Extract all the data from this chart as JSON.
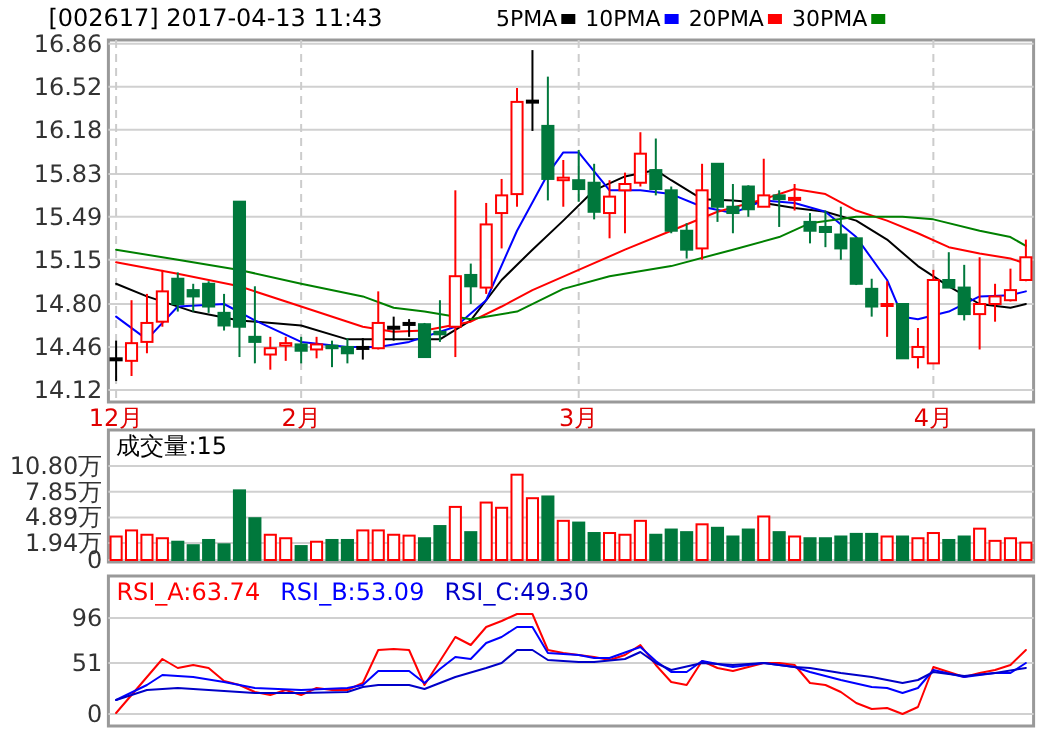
{
  "chart_data": [
    {
      "type": "candlestick",
      "title": "[002617] 2017-04-13 11:43",
      "categories": [
        "12月",
        null,
        null,
        null,
        null,
        null,
        null,
        null,
        null,
        null,
        null,
        null,
        "2月",
        null,
        null,
        null,
        null,
        null,
        null,
        null,
        null,
        null,
        null,
        null,
        null,
        null,
        null,
        null,
        null,
        null,
        "3月",
        null,
        null,
        null,
        null,
        null,
        null,
        null,
        null,
        null,
        null,
        null,
        null,
        null,
        null,
        null,
        null,
        null,
        null,
        null,
        null,
        null,
        null,
        "4月",
        null,
        null,
        null,
        null,
        null,
        null
      ],
      "ohlc": [
        [
          14.37,
          14.51,
          14.19,
          14.37
        ],
        [
          14.35,
          14.83,
          14.23,
          14.49
        ],
        [
          14.5,
          14.88,
          14.41,
          14.65
        ],
        [
          14.66,
          15.07,
          14.62,
          14.9
        ],
        [
          15.0,
          15.05,
          14.74,
          14.8
        ],
        [
          14.91,
          14.96,
          14.74,
          14.86
        ],
        [
          14.96,
          14.98,
          14.73,
          14.78
        ],
        [
          14.73,
          14.88,
          14.59,
          14.63
        ],
        [
          15.61,
          15.61,
          14.38,
          14.62
        ],
        [
          14.54,
          14.94,
          14.33,
          14.5
        ],
        [
          14.4,
          14.54,
          14.28,
          14.45
        ],
        [
          14.47,
          14.54,
          14.35,
          14.49
        ],
        [
          14.48,
          14.54,
          14.33,
          14.43
        ],
        [
          14.44,
          14.54,
          14.37,
          14.48
        ],
        [
          14.47,
          14.51,
          14.3,
          14.45
        ],
        [
          14.46,
          14.53,
          14.33,
          14.41
        ],
        [
          14.46,
          14.53,
          14.36,
          14.46
        ],
        [
          14.45,
          14.9,
          14.44,
          14.65
        ],
        [
          14.62,
          14.7,
          14.51,
          14.62
        ],
        [
          14.65,
          14.68,
          14.54,
          14.65
        ],
        [
          14.64,
          14.65,
          14.38,
          14.38
        ],
        [
          14.58,
          14.83,
          14.5,
          14.56
        ],
        [
          14.62,
          15.7,
          14.38,
          15.02
        ],
        [
          15.03,
          15.12,
          14.8,
          14.94
        ],
        [
          14.93,
          15.6,
          14.88,
          15.43
        ],
        [
          15.52,
          15.79,
          15.24,
          15.66
        ],
        [
          15.67,
          16.51,
          15.57,
          16.4
        ],
        [
          16.41,
          16.81,
          16.17,
          16.41
        ],
        [
          16.21,
          16.6,
          15.62,
          15.79
        ],
        [
          15.78,
          15.94,
          15.57,
          15.8
        ],
        [
          15.78,
          16.02,
          15.61,
          15.71
        ],
        [
          15.76,
          15.91,
          15.47,
          15.53
        ],
        [
          15.52,
          15.78,
          15.32,
          15.65
        ],
        [
          15.7,
          15.84,
          15.36,
          15.75
        ],
        [
          15.76,
          16.16,
          15.73,
          15.99
        ],
        [
          15.86,
          16.11,
          15.66,
          15.71
        ],
        [
          15.7,
          15.73,
          15.36,
          15.38
        ],
        [
          15.38,
          15.44,
          15.16,
          15.23
        ],
        [
          15.24,
          15.91,
          15.15,
          15.7
        ],
        [
          15.91,
          15.91,
          15.45,
          15.57
        ],
        [
          15.57,
          15.75,
          15.36,
          15.52
        ],
        [
          15.73,
          15.74,
          15.49,
          15.55
        ],
        [
          15.57,
          15.95,
          15.57,
          15.66
        ],
        [
          15.66,
          15.7,
          15.41,
          15.63
        ],
        [
          15.63,
          15.75,
          15.54,
          15.64
        ],
        [
          15.45,
          15.52,
          15.28,
          15.38
        ],
        [
          15.41,
          15.54,
          15.25,
          15.37
        ],
        [
          15.35,
          15.57,
          15.15,
          15.24
        ],
        [
          15.32,
          15.33,
          14.95,
          14.96
        ],
        [
          14.92,
          15.0,
          14.7,
          14.78
        ],
        [
          14.79,
          14.98,
          14.54,
          14.8
        ],
        [
          14.8,
          14.8,
          14.37,
          14.37
        ],
        [
          14.38,
          14.61,
          14.29,
          14.46
        ],
        [
          14.33,
          15.07,
          14.33,
          14.99
        ],
        [
          14.99,
          15.21,
          14.93,
          14.93
        ],
        [
          14.93,
          15.11,
          14.67,
          14.72
        ],
        [
          14.72,
          15.17,
          14.44,
          14.8
        ],
        [
          14.8,
          14.96,
          14.66,
          14.86
        ],
        [
          14.83,
          15.08,
          14.82,
          14.91
        ],
        [
          14.99,
          15.31,
          14.98,
          15.17
        ]
      ],
      "colors": [
        "#000000",
        "#ff0000",
        "#ff0000",
        "#ff0000",
        "#00783c",
        "#00783c",
        "#00783c",
        "#00783c",
        "#00783c",
        "#00783c",
        "#ff0000",
        "#ff0000",
        "#00783c",
        "#ff0000",
        "#00783c",
        "#00783c",
        "#000000",
        "#ff0000",
        "#000000",
        "#000000",
        "#00783c",
        "#00783c",
        "#ff0000",
        "#00783c",
        "#ff0000",
        "#ff0000",
        "#ff0000",
        "#000000",
        "#00783c",
        "#ff0000",
        "#00783c",
        "#00783c",
        "#ff0000",
        "#ff0000",
        "#ff0000",
        "#00783c",
        "#00783c",
        "#00783c",
        "#ff0000",
        "#00783c",
        "#00783c",
        "#00783c",
        "#ff0000",
        "#00783c",
        "#ff0000",
        "#00783c",
        "#00783c",
        "#00783c",
        "#00783c",
        "#00783c",
        "#ff0000",
        "#00783c",
        "#ff0000",
        "#ff0000",
        "#00783c",
        "#00783c",
        "#ff0000",
        "#ff0000",
        "#ff0000",
        "#ff0000"
      ],
      "series": [
        {
          "name": "5PMA",
          "type": "line",
          "color": "#000000",
          "values": [
            14.96,
            null,
            14.86,
            null,
            null,
            14.74,
            null,
            null,
            14.67,
            null,
            null,
            null,
            14.63,
            null,
            null,
            14.52,
            null,
            null,
            14.52,
            null,
            null,
            14.52,
            null,
            14.67,
            null,
            14.99,
            null,
            15.23,
            null,
            15.46,
            null,
            15.7,
            null,
            15.81,
            null,
            15.86,
            15.78,
            null,
            15.63,
            null,
            15.62,
            null,
            15.6,
            null,
            15.56,
            null,
            15.53,
            null,
            15.46,
            null,
            15.31,
            null,
            15.1,
            null,
            14.94,
            null,
            14.8,
            null,
            14.77,
            14.8
          ]
        },
        {
          "name": "10PMA",
          "type": "line",
          "color": "#0000ff",
          "values": [
            14.7,
            null,
            14.52,
            null,
            14.78,
            null,
            null,
            14.8,
            null,
            14.67,
            null,
            null,
            14.5,
            null,
            null,
            14.46,
            null,
            14.46,
            null,
            14.5,
            null,
            null,
            14.62,
            null,
            14.83,
            null,
            15.38,
            null,
            15.83,
            16.0,
            16.0,
            null,
            15.7,
            null,
            15.7,
            null,
            15.67,
            null,
            15.57,
            null,
            15.52,
            null,
            15.62,
            null,
            15.6,
            null,
            15.53,
            null,
            15.33,
            null,
            14.99,
            14.7,
            14.68,
            null,
            14.74,
            null,
            14.86,
            null,
            14.87,
            14.9
          ]
        },
        {
          "name": "20PMA",
          "type": "line",
          "color": "#ff0000",
          "values": [
            15.13,
            null,
            null,
            null,
            15.04,
            null,
            null,
            null,
            14.94,
            null,
            null,
            null,
            14.78,
            null,
            null,
            null,
            14.62,
            null,
            14.58,
            null,
            14.59,
            null,
            null,
            14.66,
            null,
            14.78,
            null,
            14.91,
            null,
            null,
            15.07,
            null,
            null,
            15.23,
            null,
            null,
            15.38,
            null,
            null,
            15.53,
            null,
            null,
            15.63,
            null,
            15.71,
            null,
            15.67,
            null,
            15.54,
            null,
            15.46,
            null,
            15.36,
            null,
            15.25,
            null,
            15.2,
            null,
            15.16,
            15.12
          ]
        },
        {
          "name": "30PMA",
          "type": "line",
          "color": "#008000",
          "values": [
            15.23,
            null,
            null,
            null,
            15.15,
            null,
            null,
            null,
            15.07,
            null,
            null,
            null,
            14.96,
            null,
            null,
            null,
            14.86,
            null,
            14.77,
            null,
            14.74,
            null,
            null,
            14.68,
            null,
            null,
            14.74,
            null,
            null,
            14.92,
            null,
            null,
            15.02,
            null,
            null,
            null,
            15.1,
            null,
            null,
            null,
            15.23,
            null,
            null,
            15.33,
            null,
            15.44,
            null,
            null,
            15.49,
            null,
            null,
            15.49,
            null,
            15.47,
            null,
            null,
            15.38,
            null,
            15.33,
            15.26
          ]
        }
      ],
      "ylim": [
        14.04,
        16.89
      ],
      "yticks": [
        16.86,
        16.52,
        16.18,
        15.83,
        15.49,
        15.15,
        {
          "value": 14.8,
          "label": "14.80"
        },
        14.46,
        14.12
      ],
      "grid": true,
      "legend": "top"
    },
    {
      "type": "bar",
      "title": "成交量:15",
      "categories": [
        null,
        null,
        null,
        null,
        null,
        null,
        null,
        null,
        null,
        null,
        null,
        null,
        null,
        null,
        null,
        null,
        null,
        null,
        null,
        null,
        null,
        null,
        null,
        null,
        null,
        null,
        null,
        null,
        null,
        null,
        null,
        null,
        null,
        null,
        null,
        null,
        null,
        null,
        null,
        null,
        null,
        null,
        null,
        null,
        null,
        null,
        null,
        null,
        null,
        null,
        null,
        null,
        null,
        null,
        null,
        null,
        null,
        null,
        null,
        null
      ],
      "values": [
        2.7,
        3.4,
        2.9,
        2.5,
        2.1,
        1.7,
        2.3,
        1.8,
        8.0,
        4.8,
        2.9,
        2.5,
        1.6,
        2.1,
        2.3,
        2.3,
        3.4,
        3.4,
        2.9,
        2.8,
        2.5,
        3.9,
        6.1,
        3.2,
        6.6,
        6.0,
        9.8,
        7.1,
        7.3,
        4.5,
        4.3,
        3.1,
        3.1,
        2.9,
        4.5,
        2.9,
        3.5,
        3.2,
        4.1,
        3.7,
        2.7,
        3.5,
        5.0,
        3.2,
        2.7,
        2.5,
        2.5,
        2.7,
        3.0,
        3.0,
        2.7,
        2.7,
        2.5,
        3.1,
        2.3,
        2.7,
        3.6,
        2.2,
        2.5,
        2.0
      ],
      "colors": [
        "#ff0000",
        "#ff0000",
        "#ff0000",
        "#ff0000",
        "#00783c",
        "#00783c",
        "#00783c",
        "#00783c",
        "#00783c",
        "#00783c",
        "#ff0000",
        "#ff0000",
        "#00783c",
        "#ff0000",
        "#00783c",
        "#00783c",
        "#ff0000",
        "#ff0000",
        "#ff0000",
        "#ff0000",
        "#00783c",
        "#00783c",
        "#ff0000",
        "#00783c",
        "#ff0000",
        "#ff0000",
        "#ff0000",
        "#ff0000",
        "#00783c",
        "#ff0000",
        "#00783c",
        "#00783c",
        "#ff0000",
        "#ff0000",
        "#ff0000",
        "#00783c",
        "#00783c",
        "#00783c",
        "#ff0000",
        "#00783c",
        "#00783c",
        "#00783c",
        "#ff0000",
        "#00783c",
        "#ff0000",
        "#00783c",
        "#00783c",
        "#00783c",
        "#00783c",
        "#00783c",
        "#ff0000",
        "#00783c",
        "#ff0000",
        "#ff0000",
        "#00783c",
        "#00783c",
        "#ff0000",
        "#ff0000",
        "#ff0000",
        "#ff0000"
      ],
      "ylim": [
        0,
        11.26
      ],
      "yticks": [
        0,
        {
          "value": 1.94,
          "label": "1.94万"
        },
        {
          "value": 4.89,
          "label": "4.89万"
        },
        {
          "value": 7.85,
          "label": "7.85万"
        },
        {
          "value": 10.8,
          "label": "10.80万"
        }
      ],
      "grid": "y",
      "tick_labels": "y"
    },
    {
      "type": "line",
      "categories": [
        null,
        null,
        null,
        null,
        null,
        null,
        null,
        null,
        null,
        null,
        null,
        null,
        null,
        null,
        null,
        null,
        null,
        null,
        null,
        null,
        null,
        null,
        null,
        null,
        null,
        null,
        null,
        null,
        null,
        null,
        null,
        null,
        null,
        null,
        null,
        null,
        null,
        null,
        null,
        null,
        null,
        null,
        null,
        null,
        null,
        null,
        null,
        null,
        null,
        null,
        null,
        null,
        null,
        null,
        null,
        null,
        null,
        null,
        null,
        null
      ],
      "series": [
        {
          "name": "RSI_A:63.74",
          "color": "#ff0000",
          "values": [
            1,
            19,
            37,
            55,
            46,
            49,
            46,
            33,
            29,
            22,
            19,
            24,
            19,
            26,
            24,
            24,
            31,
            64,
            65,
            64,
            29,
            53,
            77,
            69,
            87,
            93,
            100,
            100,
            64,
            61,
            59,
            57,
            54,
            59,
            69,
            49,
            32,
            29,
            53,
            46,
            43,
            47,
            51,
            51,
            49,
            31,
            29,
            22,
            11,
            5,
            6,
            0,
            7,
            47,
            42,
            37,
            41,
            44,
            49,
            64
          ]
        },
        {
          "name": "RSI_B:53.09",
          "color": "#0000ff",
          "values": [
            14,
            null,
            29,
            39,
            null,
            37,
            null,
            32,
            null,
            26,
            null,
            null,
            24,
            null,
            null,
            26,
            29,
            43,
            null,
            43,
            31,
            45,
            57,
            55,
            71,
            77,
            87,
            87,
            61,
            null,
            59,
            56,
            56,
            null,
            67,
            53,
            42,
            42,
            53,
            null,
            47,
            null,
            51,
            null,
            47,
            42,
            null,
            34,
            null,
            27,
            26,
            21,
            26,
            44,
            null,
            37,
            null,
            41,
            41,
            51
          ]
        },
        {
          "name": "RSI_C:49.30",
          "color": "#0000c8",
          "values": [
            14,
            null,
            24,
            null,
            26,
            null,
            24,
            null,
            null,
            21,
            null,
            null,
            21,
            null,
            null,
            22,
            27,
            29,
            null,
            29,
            25,
            31,
            37,
            null,
            46,
            51,
            64,
            64,
            54,
            null,
            52,
            52,
            null,
            55,
            62,
            51,
            44,
            null,
            51,
            null,
            49,
            null,
            51,
            null,
            47,
            46,
            null,
            41,
            null,
            37,
            null,
            31,
            34,
            42,
            null,
            38,
            null,
            41,
            null,
            46
          ]
        }
      ],
      "ylim": [
        -10,
        138
      ],
      "yticks": [
        96,
        51,
        0
      ],
      "grid": "y",
      "legend": "top left",
      "tick_labels": "y"
    }
  ]
}
